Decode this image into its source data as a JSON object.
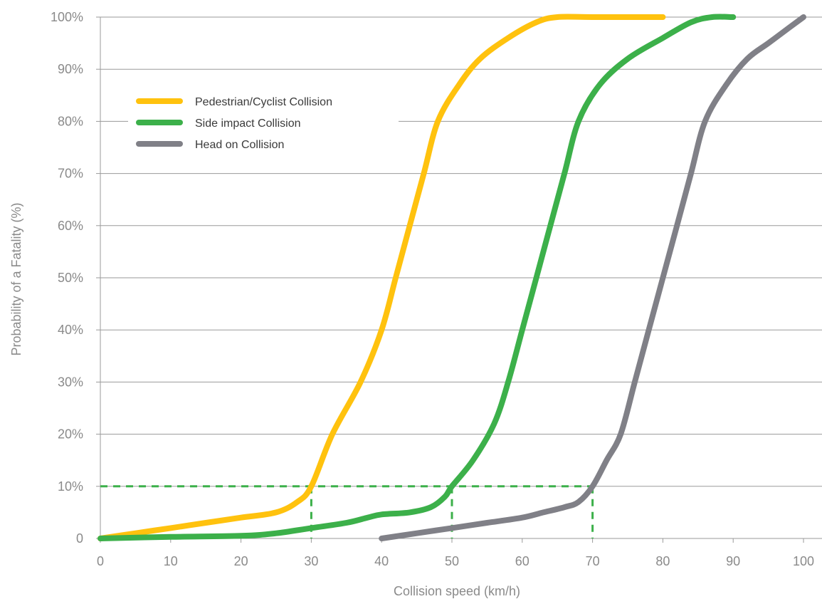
{
  "chart_data": {
    "type": "line",
    "title": "",
    "xlabel": "Collision speed (km/h)",
    "ylabel": "Probability of a Fatality (%)",
    "xlim": [
      0,
      100
    ],
    "ylim": [
      0,
      100
    ],
    "x_ticks": [
      0,
      10,
      20,
      30,
      40,
      50,
      60,
      70,
      80,
      90,
      100
    ],
    "x_tick_labels": [
      "0",
      "10",
      "20",
      "30",
      "40",
      "50",
      "60",
      "70",
      "80",
      "90",
      "100"
    ],
    "y_ticks": [
      0,
      10,
      20,
      30,
      40,
      50,
      60,
      70,
      80,
      90,
      100
    ],
    "y_tick_labels": [
      "0",
      "10%",
      "20%",
      "30%",
      "40%",
      "50%",
      "60%",
      "70%",
      "80%",
      "90%",
      "100%"
    ],
    "grid": "horizontal",
    "legend_position": "top-left",
    "series": [
      {
        "name": "Pedestrian/Cyclist Collision",
        "color": "#ffc20e",
        "points": [
          [
            0,
            0
          ],
          [
            5,
            1
          ],
          [
            10,
            2
          ],
          [
            15,
            3
          ],
          [
            20,
            4
          ],
          [
            25,
            5
          ],
          [
            28,
            7
          ],
          [
            30,
            10
          ],
          [
            33,
            20
          ],
          [
            37,
            30
          ],
          [
            40,
            40
          ],
          [
            42,
            50
          ],
          [
            44,
            60
          ],
          [
            46,
            70
          ],
          [
            48,
            80
          ],
          [
            51,
            87
          ],
          [
            54,
            92
          ],
          [
            58,
            96
          ],
          [
            62,
            99
          ],
          [
            65,
            100
          ],
          [
            70,
            100
          ],
          [
            80,
            100
          ]
        ]
      },
      {
        "name": "Side impact Collision",
        "color": "#3cb04a",
        "points": [
          [
            0,
            0
          ],
          [
            10,
            0.3
          ],
          [
            20,
            0.5
          ],
          [
            25,
            1
          ],
          [
            30,
            2
          ],
          [
            35,
            3
          ],
          [
            38,
            4
          ],
          [
            40,
            4.6
          ],
          [
            44,
            5
          ],
          [
            47,
            6
          ],
          [
            49,
            8
          ],
          [
            50,
            10
          ],
          [
            53,
            15
          ],
          [
            56,
            22
          ],
          [
            58,
            30
          ],
          [
            60,
            40
          ],
          [
            62,
            50
          ],
          [
            64,
            60
          ],
          [
            66,
            70
          ],
          [
            68,
            80
          ],
          [
            71,
            87
          ],
          [
            75,
            92
          ],
          [
            80,
            96
          ],
          [
            84,
            99
          ],
          [
            87,
            100
          ],
          [
            90,
            100
          ]
        ]
      },
      {
        "name": "Head on Collision",
        "color": "#808087",
        "points": [
          [
            40,
            0
          ],
          [
            45,
            1
          ],
          [
            50,
            2
          ],
          [
            55,
            3
          ],
          [
            60,
            4
          ],
          [
            63,
            5
          ],
          [
            66,
            6
          ],
          [
            68,
            7
          ],
          [
            70,
            10
          ],
          [
            72,
            15
          ],
          [
            74,
            20
          ],
          [
            76,
            30
          ],
          [
            78,
            40
          ],
          [
            80,
            50
          ],
          [
            82,
            60
          ],
          [
            84,
            70
          ],
          [
            86,
            80
          ],
          [
            89,
            87
          ],
          [
            92,
            92
          ],
          [
            95,
            95
          ],
          [
            98,
            98
          ],
          [
            100,
            100
          ]
        ]
      }
    ],
    "reference_lines": {
      "color": "#3cb04a",
      "probability": 10,
      "speeds": [
        30,
        50,
        70
      ]
    }
  }
}
